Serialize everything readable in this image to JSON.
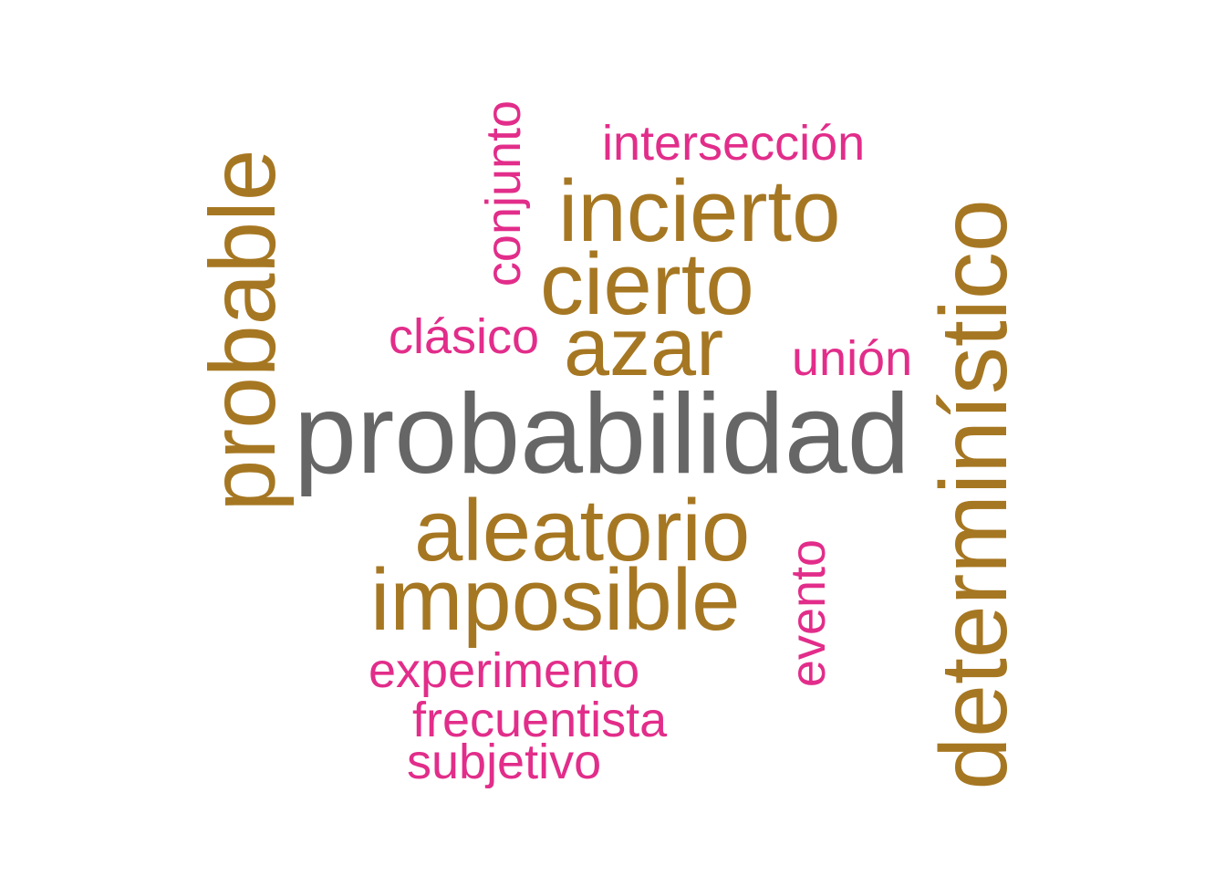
{
  "colors": {
    "background": "#ffffff",
    "gray": "#666666",
    "gold": "#a67722",
    "pink": "#e22d8a"
  },
  "words": [
    {
      "text": "probabilidad",
      "color": "gray"
    },
    {
      "text": "probable",
      "color": "gold"
    },
    {
      "text": "determinístico",
      "color": "gold"
    },
    {
      "text": "incierto",
      "color": "gold"
    },
    {
      "text": "cierto",
      "color": "gold"
    },
    {
      "text": "azar",
      "color": "gold"
    },
    {
      "text": "aleatorio",
      "color": "gold"
    },
    {
      "text": "imposible",
      "color": "gold"
    },
    {
      "text": "intersección",
      "color": "pink"
    },
    {
      "text": "conjunto",
      "color": "pink"
    },
    {
      "text": "clásico",
      "color": "pink"
    },
    {
      "text": "unión",
      "color": "pink"
    },
    {
      "text": "evento",
      "color": "pink"
    },
    {
      "text": "experimento",
      "color": "pink"
    },
    {
      "text": "frecuentista",
      "color": "pink"
    },
    {
      "text": "subjetivo",
      "color": "pink"
    }
  ]
}
